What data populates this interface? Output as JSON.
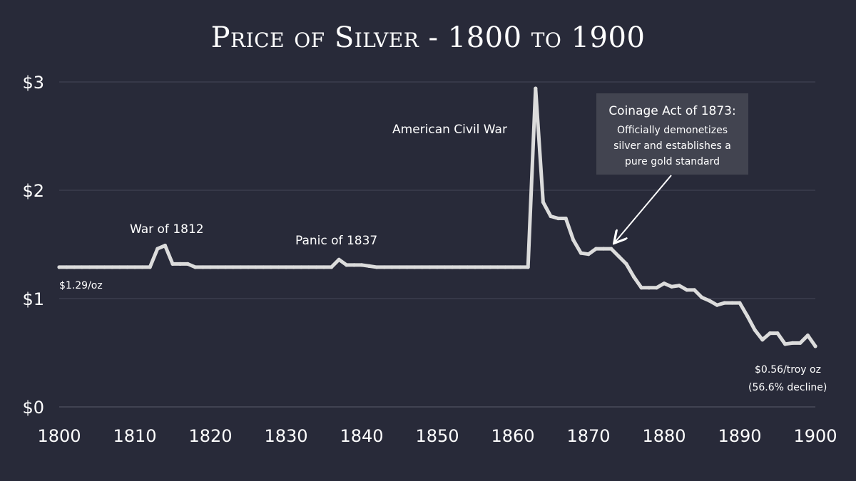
{
  "chart_data": {
    "type": "line",
    "title": "Price of Silver - 1800 to 1900",
    "xlabel": "",
    "ylabel": "",
    "xlim": [
      1800,
      1900
    ],
    "ylim": [
      0,
      3
    ],
    "x_ticks": [
      "1800",
      "1810",
      "1820",
      "1830",
      "1840",
      "1850",
      "1860",
      "1870",
      "1880",
      "1890",
      "1900"
    ],
    "y_ticks": [
      "$0",
      "$1",
      "$2",
      "$3"
    ],
    "grid": "horizontal",
    "line_color": "#dcdcdc",
    "background": "#282a39",
    "x": [
      1800,
      1801,
      1802,
      1803,
      1804,
      1805,
      1806,
      1807,
      1808,
      1809,
      1810,
      1811,
      1812,
      1813,
      1814,
      1815,
      1816,
      1817,
      1818,
      1819,
      1820,
      1821,
      1822,
      1823,
      1824,
      1825,
      1826,
      1827,
      1828,
      1829,
      1830,
      1831,
      1832,
      1833,
      1834,
      1835,
      1836,
      1837,
      1838,
      1839,
      1840,
      1841,
      1842,
      1843,
      1844,
      1845,
      1846,
      1847,
      1848,
      1849,
      1850,
      1851,
      1852,
      1853,
      1854,
      1855,
      1856,
      1857,
      1858,
      1859,
      1860,
      1861,
      1862,
      1863,
      1864,
      1865,
      1866,
      1867,
      1868,
      1869,
      1870,
      1871,
      1872,
      1873,
      1874,
      1875,
      1876,
      1877,
      1878,
      1879,
      1880,
      1881,
      1882,
      1883,
      1884,
      1885,
      1886,
      1887,
      1888,
      1889,
      1890,
      1891,
      1892,
      1893,
      1894,
      1895,
      1896,
      1897,
      1898,
      1899,
      1900
    ],
    "values": [
      1.29,
      1.29,
      1.29,
      1.29,
      1.29,
      1.29,
      1.29,
      1.29,
      1.29,
      1.29,
      1.29,
      1.29,
      1.29,
      1.46,
      1.49,
      1.32,
      1.32,
      1.32,
      1.29,
      1.29,
      1.29,
      1.29,
      1.29,
      1.29,
      1.29,
      1.29,
      1.29,
      1.29,
      1.29,
      1.29,
      1.29,
      1.29,
      1.29,
      1.29,
      1.29,
      1.29,
      1.29,
      1.36,
      1.31,
      1.31,
      1.31,
      1.3,
      1.29,
      1.29,
      1.29,
      1.29,
      1.29,
      1.29,
      1.29,
      1.29,
      1.29,
      1.29,
      1.29,
      1.29,
      1.29,
      1.29,
      1.29,
      1.29,
      1.29,
      1.29,
      1.29,
      1.29,
      1.29,
      2.94,
      1.89,
      1.76,
      1.74,
      1.74,
      1.54,
      1.42,
      1.41,
      1.46,
      1.46,
      1.46,
      1.39,
      1.32,
      1.2,
      1.1,
      1.1,
      1.1,
      1.14,
      1.11,
      1.12,
      1.08,
      1.08,
      1.01,
      0.98,
      0.94,
      0.96,
      0.96,
      0.96,
      0.84,
      0.71,
      0.62,
      0.68,
      0.68,
      0.58,
      0.59,
      0.59,
      0.66,
      0.56
    ],
    "annotations": {
      "war_1812": "War of 1812",
      "panic_1837": "Panic of 1837",
      "civil_war": "American Civil War",
      "start_label": "$1.29/oz",
      "end_label_1": "$0.56/troy oz",
      "end_label_2": "(56.6% decline)",
      "coinage_title": "Coinage Act of 1873:",
      "coinage_line1": "Officially demonetizes",
      "coinage_line2": "silver and establishes a",
      "coinage_line3": "pure gold standard"
    }
  }
}
